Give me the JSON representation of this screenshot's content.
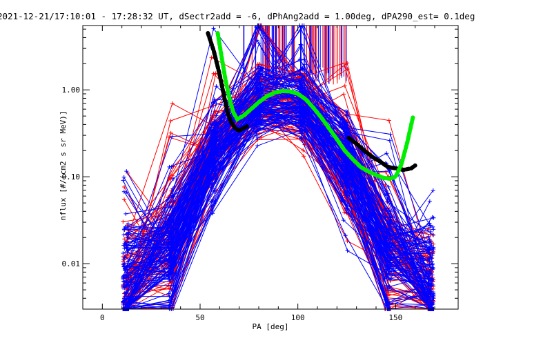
{
  "chart_data": {
    "type": "line",
    "title": "2021-12-21/17:10:01 - 17:28:32 UT, dSectr2add = -6, dPhAng2add = 1.00deg, dPA290_est=   0.1deg",
    "xlabel": "PA [deg]",
    "ylabel": "nflux [#/(cm2 s sr MeV)]",
    "xlim": [
      -10,
      182
    ],
    "ylim": [
      0.003,
      5.5
    ],
    "yscale": "log",
    "x_ticks": [
      0,
      50,
      100,
      150
    ],
    "x_tick_labels": [
      "0",
      "50",
      "100",
      "150"
    ],
    "y_ticks": [
      0.01,
      0.1,
      1.0
    ],
    "y_tick_labels": [
      "0.01",
      "0.10",
      "1.00"
    ],
    "grid": false,
    "colors": {
      "series_red": "#ff0000",
      "series_blue": "#0000ff",
      "fit_black": "#000000",
      "fit_green": "#00ee00",
      "axes": "#000000"
    },
    "pa_bins": [
      12,
      35,
      57,
      80,
      102,
      124,
      146,
      168
    ],
    "series": [
      {
        "color": "red",
        "count": 80,
        "peak_pa": 88,
        "peak_flux": 0.95,
        "edge_flux": 0.005
      },
      {
        "color": "blue",
        "count": 120,
        "peak_pa": 90,
        "peak_flux": 1.0,
        "edge_flux": 0.006
      }
    ],
    "fit_black": {
      "x": [
        54,
        57,
        60,
        62,
        64,
        66,
        68,
        70,
        72,
        74
      ],
      "y": [
        4.5,
        2.8,
        1.5,
        0.9,
        0.55,
        0.42,
        0.36,
        0.34,
        0.36,
        0.38
      ],
      "x2": [
        126,
        130,
        134,
        138,
        142,
        146,
        150,
        154,
        158,
        160
      ],
      "y2": [
        0.28,
        0.24,
        0.2,
        0.17,
        0.15,
        0.13,
        0.125,
        0.12,
        0.125,
        0.135
      ]
    },
    "fit_green": {
      "x": [
        59,
        61,
        63,
        65,
        67,
        69,
        72,
        76,
        80,
        84,
        88,
        92,
        96,
        100,
        104,
        108,
        112,
        116,
        120,
        124,
        128,
        132,
        136,
        140,
        144,
        147,
        150,
        153,
        156,
        159
      ],
      "y": [
        4.5,
        2.4,
        1.3,
        0.8,
        0.55,
        0.46,
        0.5,
        0.6,
        0.72,
        0.84,
        0.93,
        0.97,
        0.96,
        0.9,
        0.78,
        0.62,
        0.48,
        0.36,
        0.27,
        0.2,
        0.16,
        0.13,
        0.115,
        0.105,
        0.097,
        0.095,
        0.1,
        0.14,
        0.25,
        0.5
      ]
    },
    "spikes": {
      "count": 90,
      "x_range": [
        72,
        125
      ]
    }
  }
}
